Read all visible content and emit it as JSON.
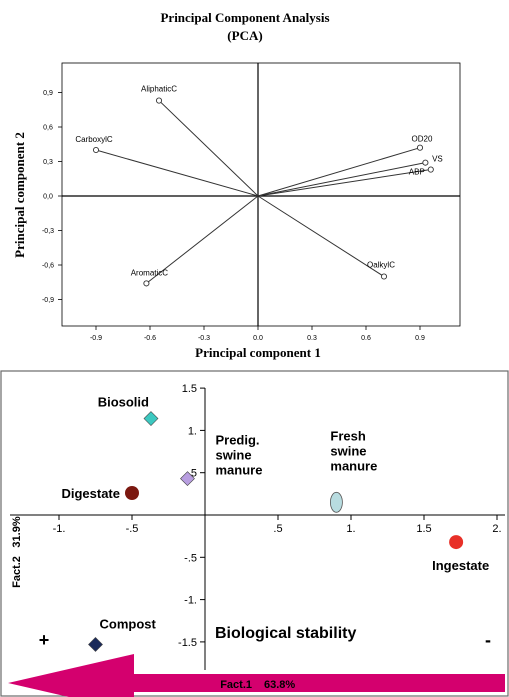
{
  "chart_data": [
    {
      "type": "scatter",
      "subtype": "biplot",
      "title": "Principal Component Analysis",
      "subtitle": "(PCA)",
      "xlabel": "Principal component 1",
      "ylabel": "Principal component 2",
      "xlim": [
        -1.1,
        1.1
      ],
      "ylim": [
        -1.1,
        1.1
      ],
      "x_ticks": [
        -0.9,
        -0.6,
        -0.3,
        0.0,
        0.3,
        0.6,
        0.9
      ],
      "x_tick_labels": [
        "-0.9",
        "-0.6",
        "-0.3",
        "0.0",
        "0.3",
        "0.6",
        "0.9"
      ],
      "y_ticks": [
        0.9,
        0.6,
        0.3,
        0.0,
        -0.3,
        -0.6,
        -0.9
      ],
      "y_tick_labels": [
        "0,9",
        "0,6",
        "0,3",
        "0,0",
        "-0,3",
        "-0,6",
        "-0,9"
      ],
      "grid": false,
      "vectors": [
        {
          "label": "AliphaticC",
          "x": -0.55,
          "y": 0.83
        },
        {
          "label": "CarboxylC",
          "x": -0.9,
          "y": 0.4
        },
        {
          "label": "AromaticC",
          "x": -0.62,
          "y": -0.76
        },
        {
          "label": "OalkylC",
          "x": 0.7,
          "y": -0.7
        },
        {
          "label": "OD20",
          "x": 0.9,
          "y": 0.42
        },
        {
          "label": "VS",
          "x": 0.93,
          "y": 0.29
        },
        {
          "label": "ABP",
          "x": 0.96,
          "y": 0.23
        }
      ]
    },
    {
      "type": "scatter",
      "xlabel": "Fact.1",
      "xlabel_pct": "63.8%",
      "ylabel": "Fact.2",
      "ylabel_pct": "31.9%",
      "xlim": [
        -1.4,
        2.05
      ],
      "ylim": [
        -1.75,
        1.55
      ],
      "x_ticks": [
        -1.0,
        -0.5,
        0.5,
        1.0,
        1.5,
        2.0
      ],
      "x_tick_labels": [
        "-1.",
        "-.5",
        ".5",
        "1.",
        "1.5",
        "2."
      ],
      "y_ticks": [
        1.5,
        1.0,
        0.5,
        -0.5,
        -1.0,
        -1.5
      ],
      "y_tick_labels": [
        "1.5",
        "1.",
        ".5",
        "-.5",
        "-1.",
        "-1.5"
      ],
      "grid": false,
      "points": [
        {
          "label": "Biosolid",
          "x": -0.37,
          "y": 1.14,
          "marker": "diamond",
          "color": "#3cc8c0"
        },
        {
          "label": "Predig. swine manure",
          "label_lines": [
            "Predig.",
            "swine",
            "manure"
          ],
          "x": -0.12,
          "y": 0.43,
          "marker": "diamond",
          "color": "#b89ee0"
        },
        {
          "label": "Digestate",
          "x": -0.5,
          "y": 0.26,
          "marker": "circle",
          "color": "#7b1810"
        },
        {
          "label": "Fresh swine manure",
          "label_lines": [
            "Fresh",
            "swine",
            "manure"
          ],
          "x": 0.9,
          "y": 0.15,
          "marker": "ellipse",
          "color": "#b8dce0"
        },
        {
          "label": "Ingestate",
          "x": 1.72,
          "y": -0.32,
          "marker": "circle",
          "color": "#e83028"
        },
        {
          "label": "Compost",
          "x": -0.75,
          "y": -1.53,
          "marker": "diamond",
          "color": "#1a2a5a"
        }
      ],
      "annotation": {
        "text": "Biological stability",
        "plus": "+",
        "minus": "-",
        "arrow_color": "#d4006e"
      }
    }
  ]
}
